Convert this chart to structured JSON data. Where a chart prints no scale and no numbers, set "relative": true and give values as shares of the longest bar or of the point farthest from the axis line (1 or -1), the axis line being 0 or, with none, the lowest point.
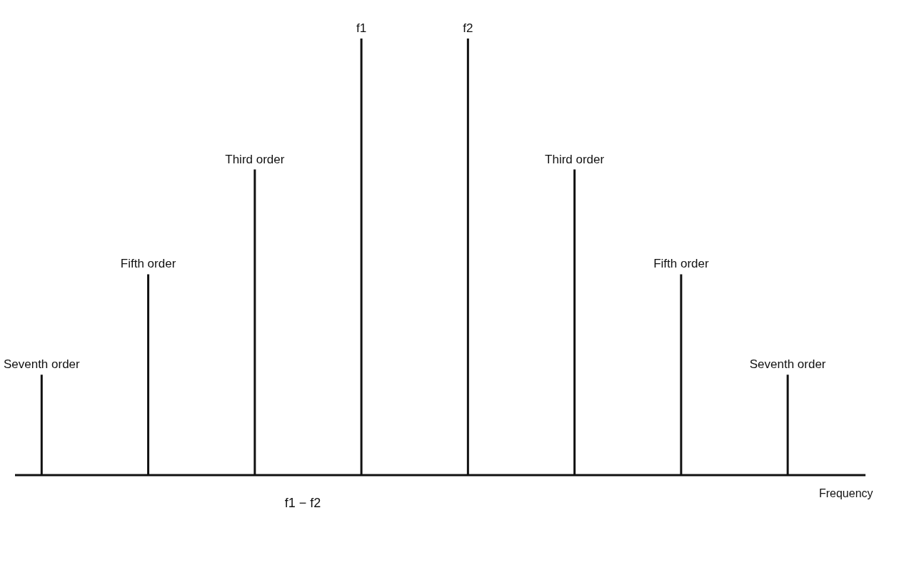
{
  "chart_data": {
    "type": "bar",
    "relative": true,
    "xlabel": "Frequency",
    "categories": [
      null,
      null,
      null,
      null,
      null,
      null,
      null,
      null
    ],
    "values": [
      0.23,
      0.46,
      0.7,
      1,
      1,
      0.7,
      0.46,
      0.23
    ],
    "color": "#111111",
    "annotations": [
      {
        "text": "Seventh order",
        "y": 0.23
      },
      {
        "text": "Fifth order",
        "y": 0.46
      },
      {
        "text": "Third order",
        "y": 0.7
      },
      {
        "text": "f1",
        "y": 1
      },
      {
        "text": "f2",
        "y": 1
      },
      {
        "text": "Third order",
        "y": 0.7
      },
      {
        "text": "Fifth order",
        "y": 0.46
      },
      {
        "text": "Seventh order",
        "y": 0.23
      },
      "f1 − f2"
    ]
  }
}
